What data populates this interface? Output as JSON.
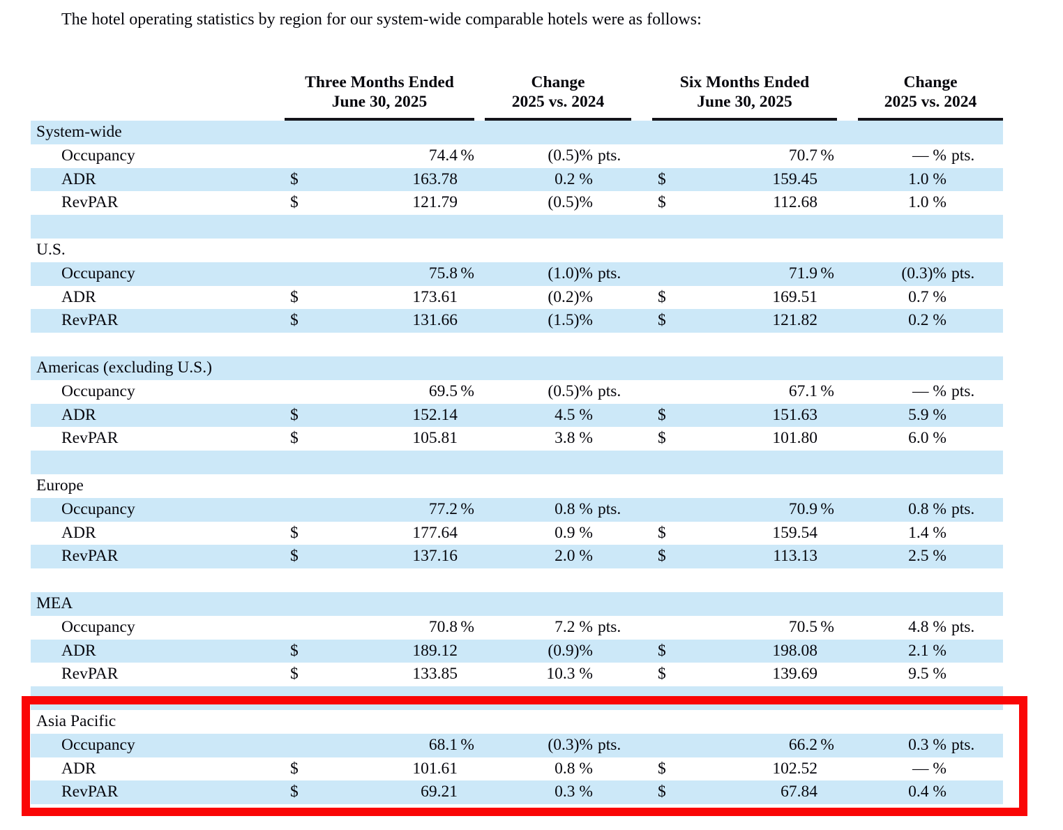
{
  "intro": "The hotel operating statistics by region for our system-wide comparable hotels were as follows:",
  "colors": {
    "row_highlight_blue": "#cce8f8",
    "annotation_red": "#fa0606",
    "header_rule_black": "#14141a"
  },
  "table": {
    "col_groups": [
      {
        "line1": "Three Months Ended",
        "line2": "June 30, 2025"
      },
      {
        "line1": "Change",
        "line2": "2025 vs. 2024"
      },
      {
        "line1": "Six Months Ended",
        "line2": "June 30, 2025"
      },
      {
        "line1": "Change",
        "line2": "2025 vs. 2024"
      }
    ],
    "sections": [
      {
        "name": "System-wide",
        "rows": [
          {
            "label": "Occupancy",
            "d1": "",
            "v1": "74.4",
            "s1": "%",
            "v2": "(0.5)%",
            "s2": "pts.",
            "d3": "",
            "v3": "70.7",
            "s3": "%",
            "v4": "— %",
            "s4": "pts."
          },
          {
            "label": "ADR",
            "d1": "$",
            "v1": "163.78",
            "s1": "",
            "v2": "0.2 %",
            "s2": "",
            "d3": "$",
            "v3": "159.45",
            "s3": "",
            "v4": "1.0 %",
            "s4": ""
          },
          {
            "label": "RevPAR",
            "d1": "$",
            "v1": "121.79",
            "s1": "",
            "v2": "(0.5)%",
            "s2": "",
            "d3": "$",
            "v3": "112.68",
            "s3": "",
            "v4": "1.0 %",
            "s4": ""
          }
        ]
      },
      {
        "name": "U.S.",
        "rows": [
          {
            "label": "Occupancy",
            "d1": "",
            "v1": "75.8",
            "s1": "%",
            "v2": "(1.0)%",
            "s2": "pts.",
            "d3": "",
            "v3": "71.9",
            "s3": "%",
            "v4": "(0.3)%",
            "s4": "pts."
          },
          {
            "label": "ADR",
            "d1": "$",
            "v1": "173.61",
            "s1": "",
            "v2": "(0.2)%",
            "s2": "",
            "d3": "$",
            "v3": "169.51",
            "s3": "",
            "v4": "0.7 %",
            "s4": ""
          },
          {
            "label": "RevPAR",
            "d1": "$",
            "v1": "131.66",
            "s1": "",
            "v2": "(1.5)%",
            "s2": "",
            "d3": "$",
            "v3": "121.82",
            "s3": "",
            "v4": "0.2 %",
            "s4": ""
          }
        ]
      },
      {
        "name": "Americas (excluding U.S.)",
        "rows": [
          {
            "label": "Occupancy",
            "d1": "",
            "v1": "69.5",
            "s1": "%",
            "v2": "(0.5)%",
            "s2": "pts.",
            "d3": "",
            "v3": "67.1",
            "s3": "%",
            "v4": "— %",
            "s4": "pts."
          },
          {
            "label": "ADR",
            "d1": "$",
            "v1": "152.14",
            "s1": "",
            "v2": "4.5 %",
            "s2": "",
            "d3": "$",
            "v3": "151.63",
            "s3": "",
            "v4": "5.9 %",
            "s4": ""
          },
          {
            "label": "RevPAR",
            "d1": "$",
            "v1": "105.81",
            "s1": "",
            "v2": "3.8 %",
            "s2": "",
            "d3": "$",
            "v3": "101.80",
            "s3": "",
            "v4": "6.0 %",
            "s4": ""
          }
        ]
      },
      {
        "name": "Europe",
        "rows": [
          {
            "label": "Occupancy",
            "d1": "",
            "v1": "77.2",
            "s1": "%",
            "v2": "0.8 %",
            "s2": "pts.",
            "d3": "",
            "v3": "70.9",
            "s3": "%",
            "v4": "0.8 %",
            "s4": "pts."
          },
          {
            "label": "ADR",
            "d1": "$",
            "v1": "177.64",
            "s1": "",
            "v2": "0.9 %",
            "s2": "",
            "d3": "$",
            "v3": "159.54",
            "s3": "",
            "v4": "1.4 %",
            "s4": ""
          },
          {
            "label": "RevPAR",
            "d1": "$",
            "v1": "137.16",
            "s1": "",
            "v2": "2.0 %",
            "s2": "",
            "d3": "$",
            "v3": "113.13",
            "s3": "",
            "v4": "2.5 %",
            "s4": ""
          }
        ]
      },
      {
        "name": "MEA",
        "rows": [
          {
            "label": "Occupancy",
            "d1": "",
            "v1": "70.8",
            "s1": "%",
            "v2": "7.2 %",
            "s2": "pts.",
            "d3": "",
            "v3": "70.5",
            "s3": "%",
            "v4": "4.8 %",
            "s4": "pts."
          },
          {
            "label": "ADR",
            "d1": "$",
            "v1": "189.12",
            "s1": "",
            "v2": "(0.9)%",
            "s2": "",
            "d3": "$",
            "v3": "198.08",
            "s3": "",
            "v4": "2.1 %",
            "s4": ""
          },
          {
            "label": "RevPAR",
            "d1": "$",
            "v1": "133.85",
            "s1": "",
            "v2": "10.3 %",
            "s2": "",
            "d3": "$",
            "v3": "139.69",
            "s3": "",
            "v4": "9.5 %",
            "s4": ""
          }
        ]
      },
      {
        "name": "Asia Pacific",
        "rows": [
          {
            "label": "Occupancy",
            "d1": "",
            "v1": "68.1",
            "s1": "%",
            "v2": "(0.3)%",
            "s2": "pts.",
            "d3": "",
            "v3": "66.2",
            "s3": "%",
            "v4": "0.3 %",
            "s4": "pts."
          },
          {
            "label": "ADR",
            "d1": "$",
            "v1": "101.61",
            "s1": "",
            "v2": "0.8 %",
            "s2": "",
            "d3": "$",
            "v3": "102.52",
            "s3": "",
            "v4": "— %",
            "s4": ""
          },
          {
            "label": "RevPAR",
            "d1": "$",
            "v1": "69.21",
            "s1": "",
            "v2": "0.3 %",
            "s2": "",
            "d3": "$",
            "v3": "67.84",
            "s3": "",
            "v4": "0.4 %",
            "s4": ""
          }
        ]
      }
    ],
    "highlighted_section": "Asia Pacific"
  }
}
